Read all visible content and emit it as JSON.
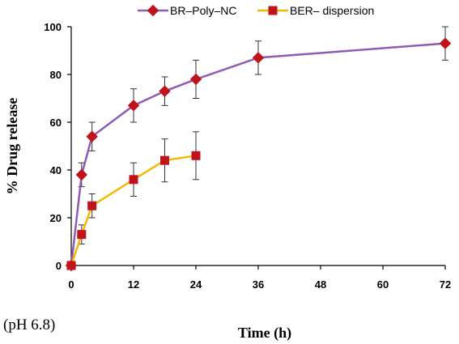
{
  "chart_data": {
    "type": "line",
    "title": "",
    "xlabel": "Time (h)",
    "ylabel": "% Drug release",
    "xlim": [
      0,
      72
    ],
    "ylim": [
      0,
      100
    ],
    "xticks": [
      0,
      12,
      24,
      36,
      48,
      60,
      72
    ],
    "yticks": [
      0,
      20,
      40,
      60,
      80,
      100
    ],
    "grid": false,
    "legend_position": "top",
    "note": "(pH 6.8)",
    "series": [
      {
        "name": "BR–Poly–NC",
        "color": "#8e5bb5",
        "marker_color": "#c0141c",
        "marker": "diamond",
        "x": [
          0,
          2,
          4,
          12,
          18,
          24,
          36,
          72
        ],
        "y": [
          0,
          38,
          54,
          67,
          73,
          78,
          87,
          93
        ],
        "error": [
          0,
          5,
          6,
          7,
          6,
          8,
          7,
          7
        ]
      },
      {
        "name": "BER– dispersion",
        "color": "#f5b800",
        "marker_color": "#c0141c",
        "marker": "square",
        "x": [
          0,
          2,
          4,
          12,
          18,
          24
        ],
        "y": [
          0,
          13,
          25,
          36,
          44,
          46
        ],
        "error": [
          0,
          4,
          5,
          7,
          9,
          10
        ]
      }
    ]
  }
}
